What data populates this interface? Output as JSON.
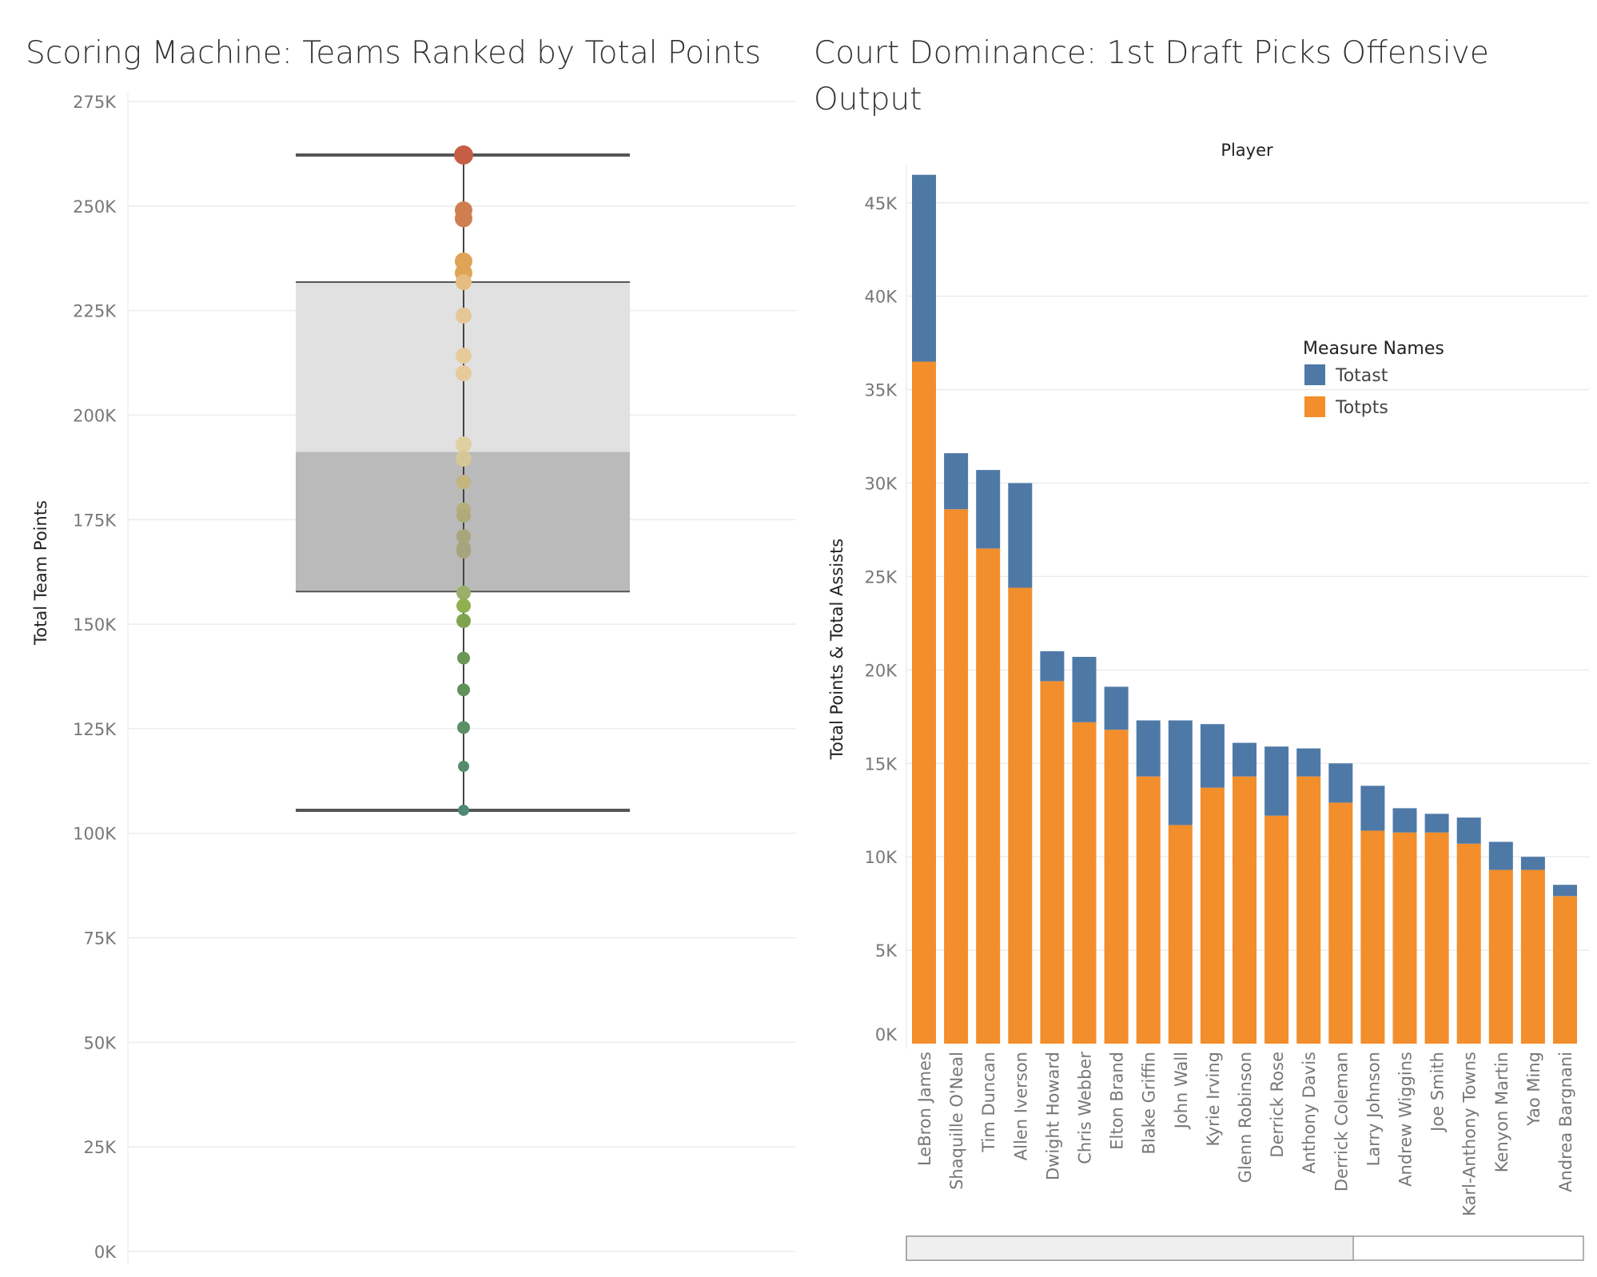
{
  "chart_data": [
    {
      "type": "box",
      "title": "Scoring Machine: Teams Ranked by Total Points",
      "ylabel": "Total Team Points",
      "ylim": [
        0,
        275000
      ],
      "yticks": [
        0,
        25000,
        50000,
        75000,
        100000,
        125000,
        150000,
        175000,
        200000,
        225000,
        250000,
        275000
      ],
      "ytick_labels": [
        "0K",
        "25K",
        "50K",
        "75K",
        "100K",
        "125K",
        "150K",
        "175K",
        "200K",
        "225K",
        "250K",
        "275K"
      ],
      "grid": true,
      "box": {
        "whisker_low": 105500,
        "q1": 157800,
        "median": 191200,
        "q3": 231800,
        "whisker_high": 262200
      },
      "points": [
        262200,
        249000,
        247000,
        236800,
        234000,
        231800,
        223800,
        214200,
        210000,
        193000,
        189600,
        184000,
        177400,
        176000,
        171000,
        168200,
        167400,
        157500,
        154400,
        150800,
        141900,
        134300,
        125300,
        116000,
        105500
      ],
      "point_colors": [
        "#c65d45",
        "#cf7e4f",
        "#cf7e4f",
        "#e0a456",
        "#e0a456",
        "#e5bd83",
        "#e5c696",
        "#e5ca9c",
        "#e5ca9c",
        "#e0d0a1",
        "#d6c896",
        "#c4b47e",
        "#b7ad79",
        "#b0aa78",
        "#aaa47a",
        "#a6a47c",
        "#a6a47c",
        "#9caf6a",
        "#8eb04e",
        "#80a350",
        "#6b9656",
        "#61905b",
        "#5a8e66",
        "#548c6b",
        "#4e8a72"
      ],
      "point_sizes": [
        12,
        11,
        11,
        11,
        11,
        10,
        10,
        10,
        10,
        10,
        10,
        9,
        9,
        9,
        9,
        9,
        9,
        9,
        9,
        9,
        8,
        8,
        8,
        7,
        7
      ]
    },
    {
      "type": "bar",
      "stacked": true,
      "title": "Court Dominance: 1st Draft Picks Offensive Output",
      "xlabel": "Player",
      "ylabel": "Total Points & Total Assists",
      "ylim": [
        0,
        47000
      ],
      "yticks": [
        0,
        5000,
        10000,
        15000,
        20000,
        25000,
        30000,
        35000,
        40000,
        45000
      ],
      "ytick_labels": [
        "0K",
        "5K",
        "10K",
        "15K",
        "20K",
        "25K",
        "30K",
        "35K",
        "40K",
        "45K"
      ],
      "grid": true,
      "legend": {
        "title": "Measure Names",
        "placement": "top-right"
      },
      "categories": [
        "LeBron James",
        "Shaquille O'Neal",
        "Tim Duncan",
        "Allen Iverson",
        "Dwight Howard",
        "Chris Webber",
        "Elton Brand",
        "Blake Griffin",
        "John Wall",
        "Kyrie Irving",
        "Glenn Robinson",
        "Derrick Rose",
        "Anthony Davis",
        "Derrick Coleman",
        "Larry Johnson",
        "Andrew Wiggins",
        "Joe Smith",
        "Karl-Anthony Towns",
        "Kenyon Martin",
        "Yao Ming",
        "Andrea Bargnani"
      ],
      "series": [
        {
          "name": "Totpts",
          "color": "#f28e2b",
          "values": [
            36500,
            28600,
            26500,
            24400,
            19400,
            17200,
            16800,
            14300,
            11700,
            13700,
            14300,
            12200,
            14300,
            12900,
            11400,
            11300,
            11300,
            10700,
            9300,
            9300,
            7900
          ]
        },
        {
          "name": "Totast",
          "color": "#4e79a7",
          "values": [
            10000,
            3000,
            4200,
            5600,
            1600,
            3500,
            2300,
            3000,
            5600,
            3400,
            1800,
            3700,
            1500,
            2100,
            2400,
            1300,
            1000,
            1400,
            1500,
            700,
            600
          ]
        }
      ]
    }
  ]
}
